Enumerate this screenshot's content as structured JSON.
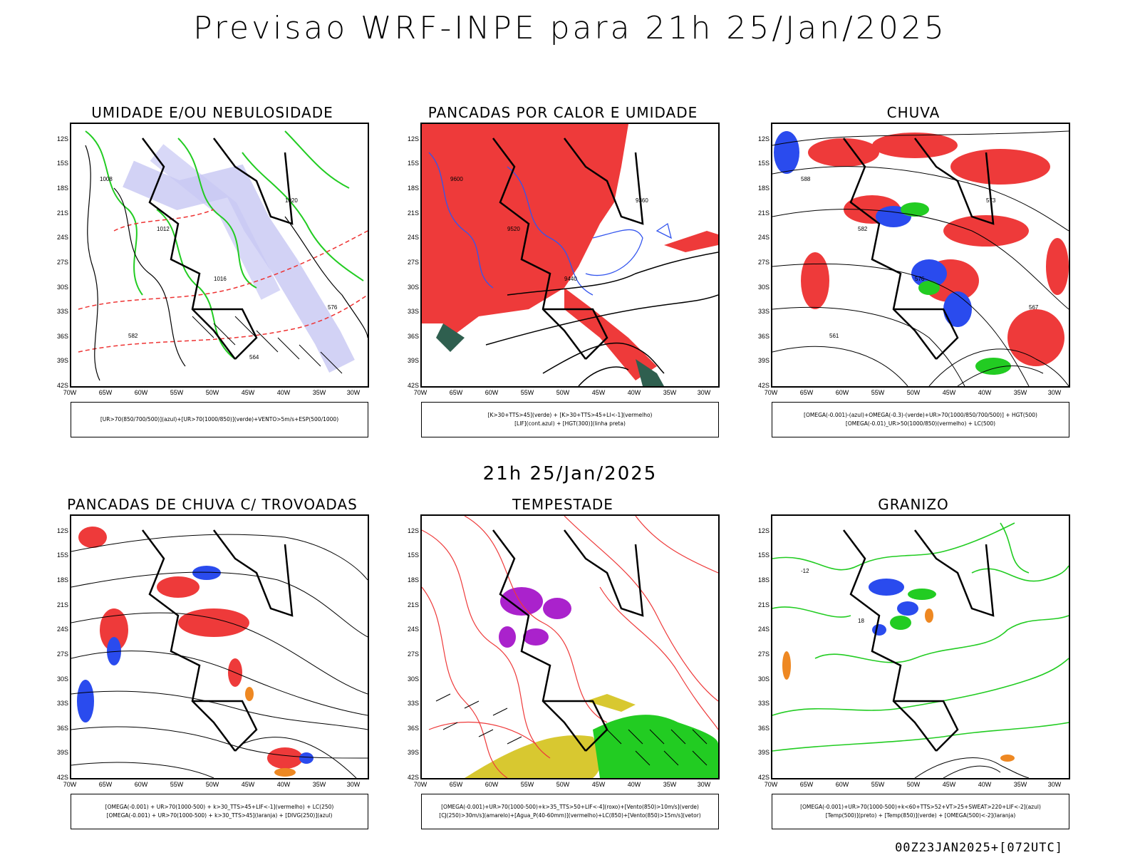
{
  "header": {
    "title": "Previsao WRF-INPE  para 21h 25/Jan/2025"
  },
  "middle_title": "21h 25/Jan/2025",
  "footer": "00Z23JAN2025+[072UTC]",
  "axes": {
    "lat_labels": [
      "12S",
      "15S",
      "18S",
      "21S",
      "24S",
      "27S",
      "30S",
      "33S",
      "36S",
      "39S",
      "42S"
    ],
    "lon_labels": [
      "70W",
      "65W",
      "60W",
      "55W",
      "50W",
      "45W",
      "40W",
      "35W",
      "30W"
    ]
  },
  "panels": [
    {
      "title": "UMIDADE E/OU NEBULOSIDADE",
      "legend": [
        "[UR>70(850/700/500)](azul)+[UR>70(1000/850)](verde)+VENTO>5m/s+ESP(500/1000)"
      ],
      "contour_labels": [
        "1008",
        "1012",
        "1016",
        "1020",
        "576",
        "582",
        "564"
      ]
    },
    {
      "title": "PANCADAS POR CALOR E UMIDADE",
      "legend": [
        "[K>30+TTS>45](verde) + [K>30+TTS>45+LI<-1](vermelho)",
        "[LIF](cont.azul) + [HGT(300)](linha preta)"
      ],
      "contour_labels": [
        "9600",
        "9520",
        "9440",
        "9360"
      ]
    },
    {
      "title": "CHUVA",
      "legend": [
        "[OMEGA(-0.001)-(azul)+OMEGA(-0.3)-(verde)+UR>70(1000/850/700/500)] + HGT(500)",
        "[OMEGA(-0.01)_UR>50(1000/850)(vermelho) + LC(500)"
      ],
      "contour_labels": [
        "588",
        "582",
        "576",
        "573",
        "567",
        "561"
      ]
    },
    {
      "title": "PANCADAS DE CHUVA C/ TROVOADAS",
      "legend": [
        "[OMEGA(-0.001) + UR>70(1000-500) + k>30_TTS>45+LIF<-1](vermelho) + LC(250)",
        "[OMEGA(-0.001) + UR>70(1000-500) + k>30_TTS>45](laranja) + [DIVG(250)](azul)"
      ],
      "contour_labels": []
    },
    {
      "title": "TEMPESTADE",
      "legend": [
        "[OMEGA(-0.001)+UR>70(1000-500)+k>35_TTS>50+LIF<-4](roxo)+[Vento(850)>10m/s](verde)",
        "[CJ(250)>30m/s](amarelo)+[Agua_P(40-60mm)](vermelho)+LC(850)+[Vento(850)>15m/s](vetor)"
      ],
      "contour_labels": []
    },
    {
      "title": "GRANIZO",
      "legend": [
        "[OMEGA(-0.001)+UR>70(1000-500)+k<60+TTS>52+VT>25+SWEAT>220+LIF<-2](azul)",
        "[Temp(500)](preto) + [Temp(850)](verde) + [OMEGA(500)<-2](laranja)"
      ],
      "contour_labels": [
        "-12",
        "18"
      ]
    }
  ]
}
